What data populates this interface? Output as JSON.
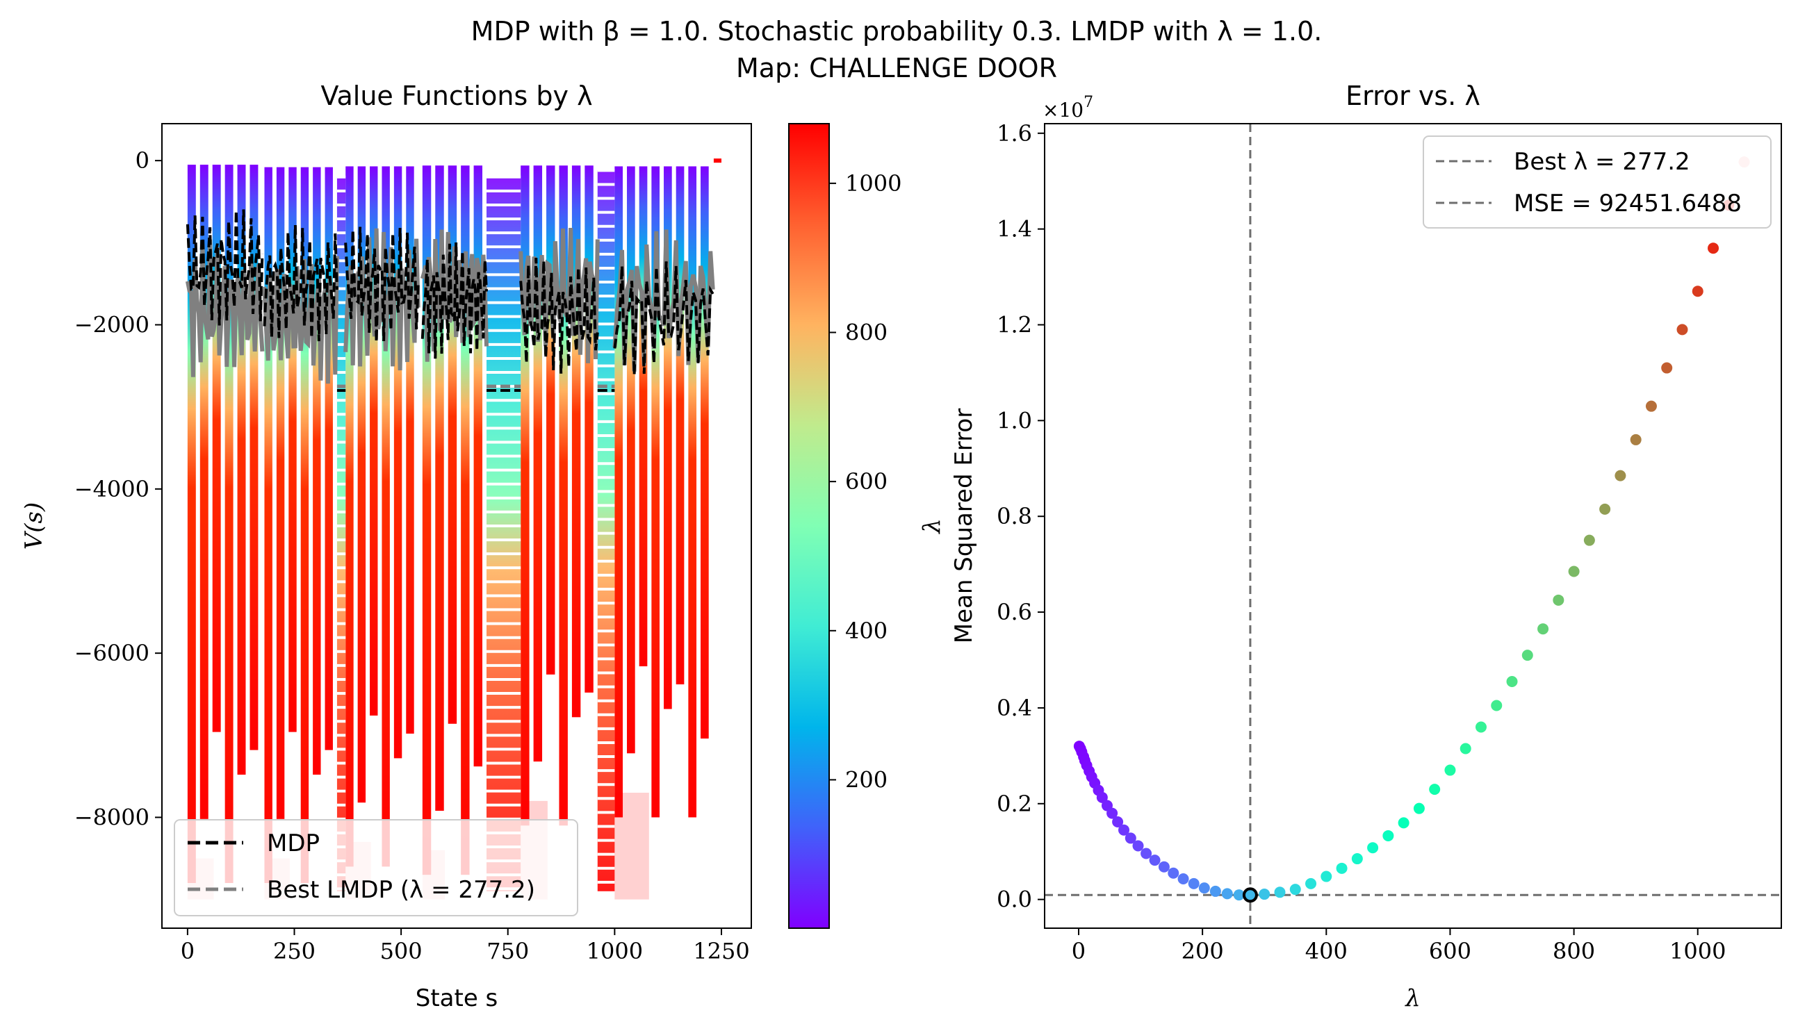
{
  "figure": {
    "suptitle_line1": "MDP with β = 1.0. Stochastic probability 0.3. LMDP with λ = 1.0.",
    "suptitle_line2": "Map: CHALLENGE DOOR"
  },
  "chart_data": [
    {
      "type": "line",
      "title": "Value Functions by λ",
      "xlabel": "State s",
      "ylabel": "V(s)",
      "xlim": [
        -60,
        1320
      ],
      "ylim": [
        -9350,
        450
      ],
      "xticks": [
        0,
        250,
        500,
        750,
        1000,
        1250
      ],
      "xtick_labels": [
        "0",
        "250",
        "500",
        "750",
        "1000",
        "1250"
      ],
      "yticks": [
        0,
        -2000,
        -4000,
        -6000,
        -8000
      ],
      "ytick_labels": [
        "0",
        "−2000",
        "−4000",
        "−6000",
        "−8000"
      ],
      "grid": false,
      "legend_position": "lower-left",
      "legend": [
        {
          "label": "MDP",
          "color": "#000000",
          "style": "dashed"
        },
        {
          "label": "Best LMDP (λ = 277.2)",
          "color": "#808080",
          "style": "dashed"
        }
      ],
      "colormap": "rainbow",
      "colorbar": {
        "vmin": 1,
        "vmax": 1080,
        "ticks": [
          200,
          400,
          600,
          800,
          1000
        ],
        "tick_labels": [
          "200",
          "400",
          "600",
          "800",
          "1000"
        ]
      },
      "room_segments": [
        {
          "x": [
            0,
            175
          ],
          "top": -50,
          "mdp": -1300,
          "lmdp": -1800,
          "floor": -8800
        },
        {
          "x": [
            180,
            350
          ],
          "top": -80,
          "mdp": -1500,
          "lmdp": -1900,
          "floor": -8800
        },
        {
          "x": [
            370,
            540
          ],
          "top": -70,
          "mdp": -1500,
          "lmdp": -1700,
          "floor": -8600
        },
        {
          "x": [
            550,
            700
          ],
          "top": -60,
          "mdp": -1700,
          "lmdp": -1600,
          "floor": -8700
        },
        {
          "x": [
            780,
            960
          ],
          "top": -60,
          "mdp": -1900,
          "lmdp": -1600,
          "floor": -8100
        },
        {
          "x": [
            1000,
            1230
          ],
          "top": -70,
          "mdp": -1900,
          "lmdp": -1700,
          "floor": -8000
        }
      ],
      "corridor_segments": [
        {
          "x": [
            350,
            370
          ],
          "top": -200,
          "bottom": -8900
        },
        {
          "x": [
            700,
            780
          ],
          "top": -200,
          "bottom": -8900
        },
        {
          "x": [
            960,
            1000
          ],
          "top": -120,
          "bottom": -8900
        }
      ],
      "line_colors": {
        "mdp": "#000000",
        "lmdp": "#808080"
      }
    },
    {
      "type": "scatter",
      "title": "Error vs. λ",
      "xlabel": "λ",
      "ylabel": "Mean Squared Error",
      "ylabel_extra": "λ",
      "offset_label": "×10",
      "offset_exponent": "7",
      "xlim": [
        -55,
        1135
      ],
      "ylim": [
        -0.06,
        1.62
      ],
      "y_scale_multiplier": 10000000,
      "xticks": [
        0,
        200,
        400,
        600,
        800,
        1000
      ],
      "xtick_labels": [
        "0",
        "200",
        "400",
        "600",
        "800",
        "1000"
      ],
      "yticks": [
        0,
        0.2,
        0.4,
        0.6,
        0.8,
        1.0,
        1.2,
        1.4,
        1.6
      ],
      "ytick_labels": [
        "0.0",
        "0.2",
        "0.4",
        "0.6",
        "0.8",
        "1.0",
        "1.2",
        "1.4",
        "1.6"
      ],
      "grid": false,
      "legend_position": "upper-right",
      "legend": [
        {
          "label": "Best λ = 277.2",
          "color": "#6e6e6e",
          "style": "dashed"
        },
        {
          "label": "MSE = 92451.6488",
          "color": "#6e6e6e",
          "style": "dashed"
        }
      ],
      "best_lambda": 277.2,
      "best_mse": 0.00924516488,
      "x": [
        1,
        3,
        5,
        8,
        10,
        13,
        17,
        21,
        26,
        32,
        38,
        46,
        54,
        63,
        73,
        84,
        96,
        109,
        123,
        138,
        153,
        169,
        186,
        203,
        221,
        240,
        259,
        277.2,
        300,
        325,
        350,
        375,
        400,
        425,
        450,
        475,
        500,
        525,
        550,
        575,
        600,
        625,
        650,
        675,
        700,
        725,
        750,
        775,
        800,
        825,
        850,
        875,
        900,
        925,
        950,
        975,
        1000,
        1025,
        1050,
        1075
      ],
      "y": [
        0.32,
        0.315,
        0.308,
        0.298,
        0.29,
        0.28,
        0.268,
        0.256,
        0.243,
        0.228,
        0.213,
        0.196,
        0.18,
        0.162,
        0.145,
        0.128,
        0.112,
        0.096,
        0.082,
        0.068,
        0.055,
        0.043,
        0.033,
        0.024,
        0.017,
        0.012,
        0.0095,
        0.0092,
        0.011,
        0.015,
        0.021,
        0.033,
        0.048,
        0.065,
        0.085,
        0.108,
        0.133,
        0.16,
        0.19,
        0.23,
        0.27,
        0.315,
        0.36,
        0.405,
        0.455,
        0.51,
        0.565,
        0.625,
        0.685,
        0.75,
        0.815,
        0.885,
        0.96,
        1.03,
        1.11,
        1.19,
        1.27,
        1.36,
        1.45,
        1.54
      ]
    }
  ]
}
